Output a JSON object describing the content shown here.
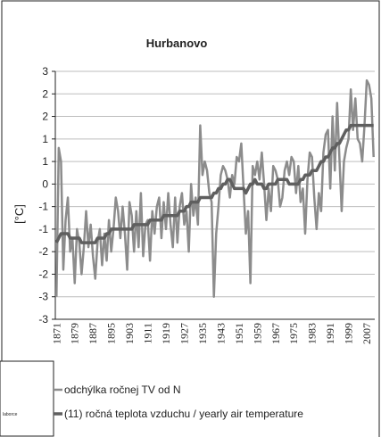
{
  "chart_data": {
    "type": "line",
    "title": "Hurbanovo",
    "y_label": "[°C]",
    "legend_fragment": "laborce",
    "categories": [
      "1871",
      null,
      null,
      null,
      null,
      null,
      null,
      null,
      "1879",
      null,
      null,
      null,
      null,
      null,
      null,
      null,
      "1887",
      null,
      null,
      null,
      null,
      null,
      null,
      null,
      "1895",
      null,
      null,
      null,
      null,
      null,
      null,
      null,
      "1903",
      null,
      null,
      null,
      null,
      null,
      null,
      null,
      "1911",
      null,
      null,
      null,
      null,
      null,
      null,
      null,
      "1919",
      null,
      null,
      null,
      null,
      null,
      null,
      null,
      "1927",
      null,
      null,
      null,
      null,
      null,
      null,
      null,
      "1935",
      null,
      null,
      null,
      null,
      null,
      null,
      null,
      "1943",
      null,
      null,
      null,
      null,
      null,
      null,
      null,
      "1951",
      null,
      null,
      null,
      null,
      null,
      null,
      null,
      "1959",
      null,
      null,
      null,
      null,
      null,
      null,
      null,
      "1967",
      null,
      null,
      null,
      null,
      null,
      null,
      null,
      "1975",
      null,
      null,
      null,
      null,
      null,
      null,
      null,
      "1983",
      null,
      null,
      null,
      null,
      null,
      null,
      null,
      "1991",
      null,
      null,
      null,
      null,
      null,
      null,
      null,
      "1999",
      null,
      null,
      null,
      null,
      null,
      null,
      null,
      "2007",
      null,
      null,
      null
    ],
    "series": [
      {
        "name": "odchýlka ročnej TV od N",
        "color": "#8c8c8c",
        "width": 2.5,
        "values": [
          -2.5,
          0.8,
          0.5,
          -1.9,
          -0.8,
          -0.3,
          -1.5,
          -1.2,
          -2.2,
          -1.0,
          -1.3,
          -2.0,
          -1.4,
          -0.6,
          -1.4,
          -0.9,
          -1.6,
          -2.1,
          -1.3,
          -1.0,
          -1.8,
          -1.1,
          -1.7,
          -0.8,
          -1.5,
          -1.0,
          -0.3,
          -0.6,
          -1.2,
          -0.5,
          -1.1,
          -1.9,
          -0.4,
          -0.7,
          -1.5,
          -0.6,
          -1.4,
          -0.2,
          -1.6,
          -0.9,
          -0.8,
          -1.7,
          -0.6,
          -1.1,
          -0.5,
          -0.3,
          -1.2,
          -0.4,
          -1.0,
          -0.2,
          -0.9,
          -1.4,
          -0.3,
          -1.3,
          -0.5,
          -0.2,
          -0.9,
          -0.6,
          -1.5,
          0.0,
          -0.7,
          -0.3,
          -0.9,
          1.3,
          0.2,
          0.5,
          0.3,
          -0.2,
          -0.4,
          -2.5,
          -1.1,
          -0.5,
          0.2,
          0.4,
          0.3,
          0.1,
          -0.3,
          0.2,
          0.0,
          0.6,
          0.5,
          0.9,
          -0.1,
          -1.1,
          -0.6,
          -2.2,
          0.4,
          0.2,
          0.5,
          0.1,
          0.7,
          0.0,
          -0.8,
          -0.1,
          -0.6,
          0.4,
          0.3,
          0.1,
          -0.5,
          -0.3,
          0.3,
          0.5,
          0.2,
          0.6,
          0.5,
          -0.2,
          0.4,
          -0.4,
          -0.1,
          -1.1,
          0.1,
          0.7,
          0.6,
          -0.3,
          -1.0,
          -0.2,
          -0.6,
          0.7,
          1.1,
          1.2,
          -0.1,
          1.5,
          0.3,
          1.8,
          0.6,
          -0.6,
          0.5,
          0.8,
          1.0,
          2.1,
          1.2,
          1.9,
          1.0,
          0.9,
          0.5,
          1.3,
          2.3,
          2.2,
          1.9,
          0.6
        ]
      },
      {
        "name": "(11) ročná teplota vzduchu / yearly air temperature",
        "color": "#5f5f5f",
        "width": 3.5,
        "values": [
          -1.3,
          -1.2,
          -1.1,
          -1.1,
          -1.1,
          -1.1,
          -1.2,
          -1.2,
          -1.2,
          -1.2,
          -1.2,
          -1.3,
          -1.3,
          -1.3,
          -1.3,
          -1.3,
          -1.3,
          -1.3,
          -1.2,
          -1.2,
          -1.2,
          -1.2,
          -1.1,
          -1.1,
          -1.0,
          -1.0,
          -1.0,
          -1.0,
          -1.0,
          -1.0,
          -1.0,
          -1.0,
          -1.0,
          -1.0,
          -0.9,
          -0.9,
          -0.9,
          -0.9,
          -0.9,
          -0.9,
          -0.9,
          -0.8,
          -0.8,
          -0.8,
          -0.8,
          -0.8,
          -0.8,
          -0.7,
          -0.7,
          -0.7,
          -0.7,
          -0.7,
          -0.7,
          -0.7,
          -0.6,
          -0.6,
          -0.6,
          -0.5,
          -0.5,
          -0.4,
          -0.4,
          -0.4,
          -0.4,
          -0.3,
          -0.3,
          -0.3,
          -0.3,
          -0.3,
          -0.3,
          -0.2,
          -0.2,
          -0.1,
          -0.1,
          0.0,
          0.0,
          0.1,
          0.1,
          0.0,
          -0.1,
          -0.1,
          -0.1,
          -0.1,
          -0.1,
          -0.2,
          -0.1,
          0.0,
          0.0,
          0.1,
          0.0,
          0.0,
          0.0,
          -0.1,
          -0.1,
          0.0,
          0.0,
          0.0,
          0.0,
          0.1,
          0.1,
          0.1,
          0.1,
          0.1,
          0.0,
          0.0,
          0.0,
          0.0,
          0.0,
          0.1,
          0.1,
          0.2,
          0.2,
          0.2,
          0.3,
          0.3,
          0.3,
          0.4,
          0.5,
          0.5,
          0.6,
          0.6,
          0.7,
          0.8,
          0.8,
          0.9,
          0.9,
          1.0,
          1.1,
          1.2,
          1.2,
          1.3,
          1.3,
          1.3,
          1.3,
          1.3,
          1.3,
          1.3,
          1.3,
          1.3,
          1.3,
          1.3
        ]
      }
    ],
    "ylim": [
      -3,
      2.5
    ],
    "yticks": [
      {
        "value": 2.5,
        "label": "3"
      },
      2,
      {
        "value": 1.5,
        "label": "2"
      },
      1,
      {
        "value": 0.5,
        "label": "1"
      },
      0,
      {
        "value": -0.5,
        "label": "-1"
      },
      -1,
      {
        "value": -1.5,
        "label": "-2"
      },
      -2,
      {
        "value": -2.5,
        "label": "-3"
      },
      -3
    ],
    "grid": true
  }
}
